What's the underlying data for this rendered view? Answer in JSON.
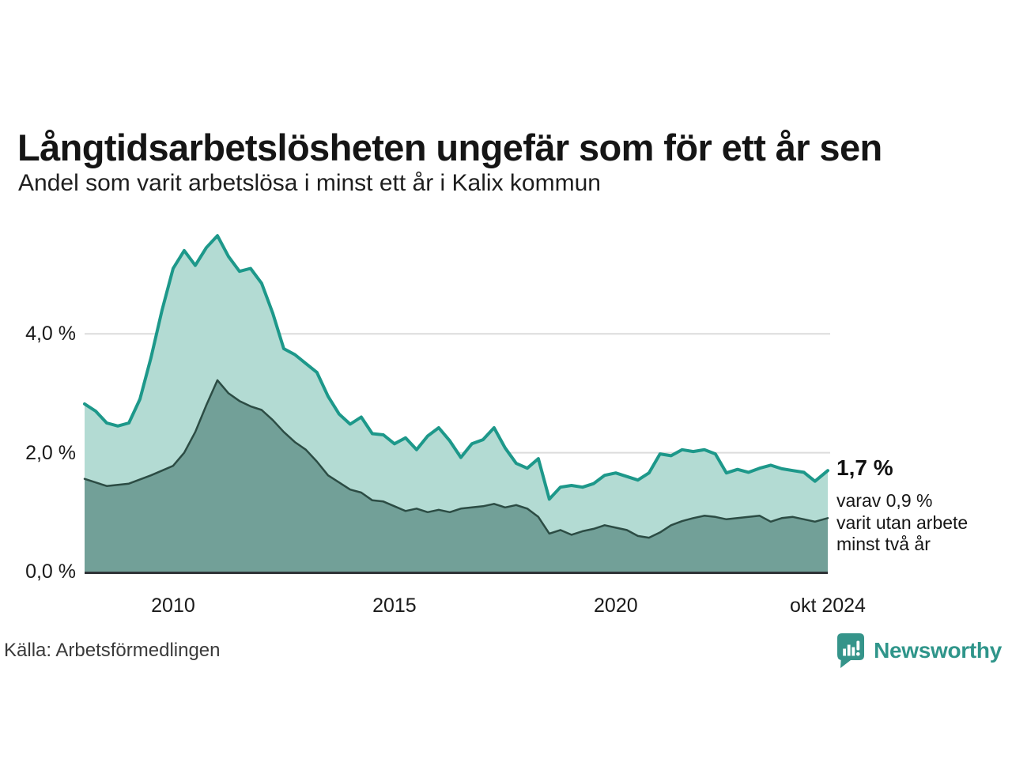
{
  "chart_data": {
    "type": "area",
    "title": "Långtidsarbetslösheten ungefär som för ett år sen",
    "subtitle": "Andel som varit arbetslösa i minst ett år i Kalix kommun",
    "x_unit": "decimal_year",
    "x_range": [
      2008.0,
      2024.79
    ],
    "ylim": [
      0,
      5.8
    ],
    "grid": "horizontal",
    "legend": "none",
    "x": [
      2008.0,
      2008.25,
      2008.5,
      2008.75,
      2009.0,
      2009.25,
      2009.5,
      2009.75,
      2010.0,
      2010.25,
      2010.5,
      2010.75,
      2011.0,
      2011.25,
      2011.5,
      2011.75,
      2012.0,
      2012.25,
      2012.5,
      2012.75,
      2013.0,
      2013.25,
      2013.5,
      2013.75,
      2014.0,
      2014.25,
      2014.5,
      2014.75,
      2015.0,
      2015.25,
      2015.5,
      2015.75,
      2016.0,
      2016.25,
      2016.5,
      2016.75,
      2017.0,
      2017.25,
      2017.5,
      2017.75,
      2018.0,
      2018.25,
      2018.5,
      2018.75,
      2019.0,
      2019.25,
      2019.5,
      2019.75,
      2020.0,
      2020.25,
      2020.5,
      2020.75,
      2021.0,
      2021.25,
      2021.5,
      2021.75,
      2022.0,
      2022.25,
      2022.5,
      2022.75,
      2023.0,
      2023.25,
      2023.5,
      2023.75,
      2024.0,
      2024.25,
      2024.5,
      2024.79
    ],
    "series": [
      {
        "name": "Andel som varit arbetslösa i minst ett år",
        "line_color": "#1d988a",
        "fill_color": "#b3dbd3",
        "line_width": 4,
        "last_value_pct": "1,7 %",
        "values": [
          2.82,
          2.7,
          2.5,
          2.45,
          2.5,
          2.9,
          3.6,
          4.4,
          5.1,
          5.4,
          5.15,
          5.45,
          5.65,
          5.3,
          5.05,
          5.1,
          4.85,
          4.35,
          3.75,
          3.65,
          3.5,
          3.35,
          2.95,
          2.65,
          2.48,
          2.6,
          2.32,
          2.3,
          2.15,
          2.25,
          2.05,
          2.28,
          2.42,
          2.2,
          1.92,
          2.15,
          2.22,
          2.42,
          2.08,
          1.82,
          1.74,
          1.9,
          1.22,
          1.42,
          1.45,
          1.42,
          1.48,
          1.62,
          1.66,
          1.6,
          1.54,
          1.66,
          1.98,
          1.95,
          2.05,
          2.02,
          2.05,
          1.98,
          1.66,
          1.72,
          1.67,
          1.74,
          1.79,
          1.73,
          1.7,
          1.67,
          1.52,
          1.7
        ]
      },
      {
        "name": "Andel som varit utan arbete minst två år",
        "line_color": "#2c4c44",
        "fill_color": "#72a098",
        "line_width": 2.5,
        "last_value_pct": "0,9 %",
        "values": [
          1.56,
          1.5,
          1.44,
          1.46,
          1.48,
          1.55,
          1.62,
          1.7,
          1.78,
          2.0,
          2.35,
          2.8,
          3.22,
          3.0,
          2.87,
          2.78,
          2.72,
          2.55,
          2.35,
          2.18,
          2.05,
          1.85,
          1.62,
          1.5,
          1.38,
          1.33,
          1.2,
          1.18,
          1.1,
          1.02,
          1.06,
          1.0,
          1.04,
          1.0,
          1.06,
          1.08,
          1.1,
          1.14,
          1.08,
          1.12,
          1.06,
          0.92,
          0.64,
          0.7,
          0.62,
          0.68,
          0.72,
          0.78,
          0.74,
          0.7,
          0.6,
          0.57,
          0.66,
          0.78,
          0.85,
          0.9,
          0.94,
          0.92,
          0.88,
          0.9,
          0.92,
          0.94,
          0.84,
          0.9,
          0.92,
          0.88,
          0.84,
          0.9
        ]
      }
    ],
    "yticks": [
      {
        "value": 4.0,
        "label": "4,0 %"
      },
      {
        "value": 2.0,
        "label": "2,0 %"
      },
      {
        "value": 0.0,
        "label": "0,0 %"
      }
    ],
    "xticks": [
      {
        "value": 2010,
        "label": "2010"
      },
      {
        "value": 2015,
        "label": "2015"
      },
      {
        "value": 2020,
        "label": "2020"
      },
      {
        "value": 2024.79,
        "label": "okt 2024"
      }
    ],
    "colors": {
      "grid": "#dcdcdc",
      "axis": "#2f3337",
      "background": "#ffffff"
    }
  },
  "annotation": {
    "value_label": "1,7 %",
    "detail_lines": [
      "varav 0,9 %",
      "varit utan arbete",
      "minst två år"
    ]
  },
  "footer": {
    "source": "Källa: Arbetsförmedlingen",
    "brand": "Newsworthy"
  }
}
